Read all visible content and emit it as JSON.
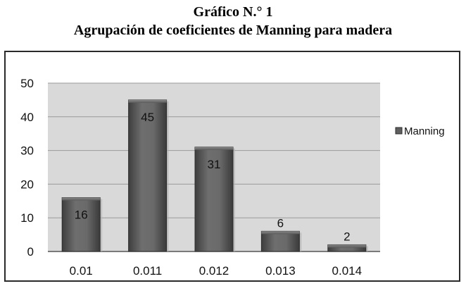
{
  "chart_data": {
    "type": "bar",
    "title": "Gráfico N.° 1",
    "subtitle": "Agrupación de coeficientes de Manning para madera",
    "categories": [
      "0.01",
      "0.011",
      "0.012",
      "0.013",
      "0.014"
    ],
    "series": [
      {
        "name": "Manning",
        "values": [
          16,
          45,
          31,
          6,
          2
        ]
      }
    ],
    "ylim": [
      0,
      50
    ],
    "yticks": [
      0,
      10,
      20,
      30,
      40,
      50
    ],
    "grid": true,
    "legend": "right",
    "colors": {
      "bar": "#5f5f5f",
      "plot_bg": "#d9d9d9",
      "grid": "#9a9a9a"
    }
  }
}
